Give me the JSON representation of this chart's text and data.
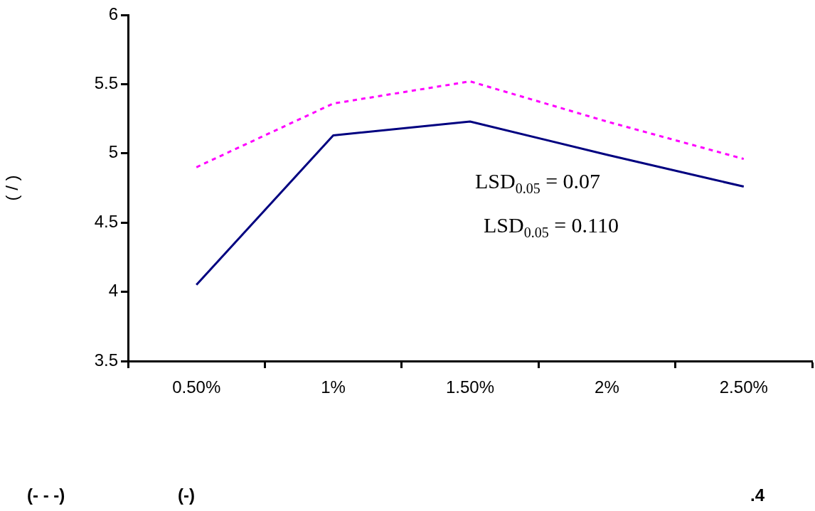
{
  "chart_data": {
    "type": "line",
    "ylabel": "( / )",
    "categories": [
      "0.50%",
      "1%",
      "1.50%",
      "2%",
      "2.50%"
    ],
    "series": [
      {
        "color": "#000080",
        "line_style": "solid",
        "values": [
          4.05,
          5.13,
          5.23,
          4.99,
          4.76
        ]
      },
      {
        "color": "#ff00ff",
        "line_style": "dashed",
        "values": [
          4.9,
          5.36,
          5.52,
          5.23,
          4.96
        ]
      }
    ],
    "ylim": [
      3.5,
      6
    ],
    "yticks": [
      3.5,
      4,
      4.5,
      5,
      5.5,
      6
    ],
    "grid": false,
    "legend": false,
    "marker": "none",
    "annotations": [
      "LSD$_{0.05}$ = 0.07",
      "LSD$_{0.05}$ = 0.110",
      "(- - -)",
      "(-)",
      ".4"
    ]
  }
}
